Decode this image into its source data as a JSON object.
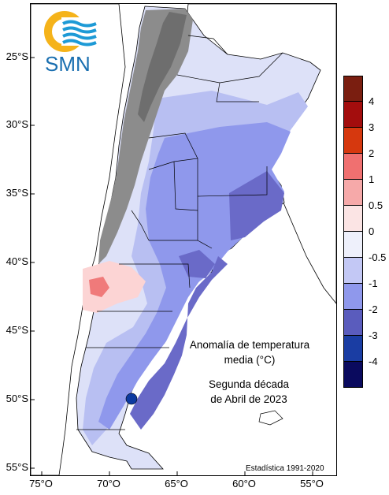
{
  "logo": {
    "text": "SMN",
    "icon": "smn-logo-icon",
    "colors": {
      "ring": "#f5b31a",
      "waves": "#1d9ad6"
    }
  },
  "map": {
    "latitude_labels": [
      "25°S",
      "30°S",
      "35°S",
      "40°S",
      "45°S",
      "50°S",
      "55°S"
    ],
    "longitude_labels": [
      "75°O",
      "70°O",
      "65°O",
      "60°O",
      "55°O"
    ],
    "title_lines": [
      "Anomalía de temperatura",
      "media (°C)"
    ],
    "period_lines": [
      "Segunda década",
      "de Abril de 2023"
    ],
    "source": "Estadística 1991-2020",
    "region": "Argentina",
    "colors": {
      "mountains": "#8c8c8c",
      "pale_blue": "#dde1f8",
      "light_blue": "#b8bff2",
      "mid_blue": "#8f98ec",
      "deep_blue": "#6a6ac8",
      "pink": "#fcd4d4",
      "red": "#f07a7a",
      "navy": "#0d3aa0"
    }
  },
  "legend": {
    "items": [
      {
        "label": "4",
        "color": "#7a1e10"
      },
      {
        "label": "3",
        "color": "#a30d0d"
      },
      {
        "label": "2",
        "color": "#d6380e"
      },
      {
        "label": "1",
        "color": "#f07070"
      },
      {
        "label": "0.5",
        "color": "#f6a9a9"
      },
      {
        "label": "0",
        "color": "#fbe4e4"
      },
      {
        "label": "-0.5",
        "color": "#eef0fb"
      },
      {
        "label": "-1",
        "color": "#c3c8f5"
      },
      {
        "label": "-2",
        "color": "#8f98ec"
      },
      {
        "label": "-3",
        "color": "#5a5cbd"
      },
      {
        "label": "-4",
        "color": "#1a3da3"
      },
      {
        "label": "",
        "color": "#0a0a5e"
      }
    ]
  }
}
